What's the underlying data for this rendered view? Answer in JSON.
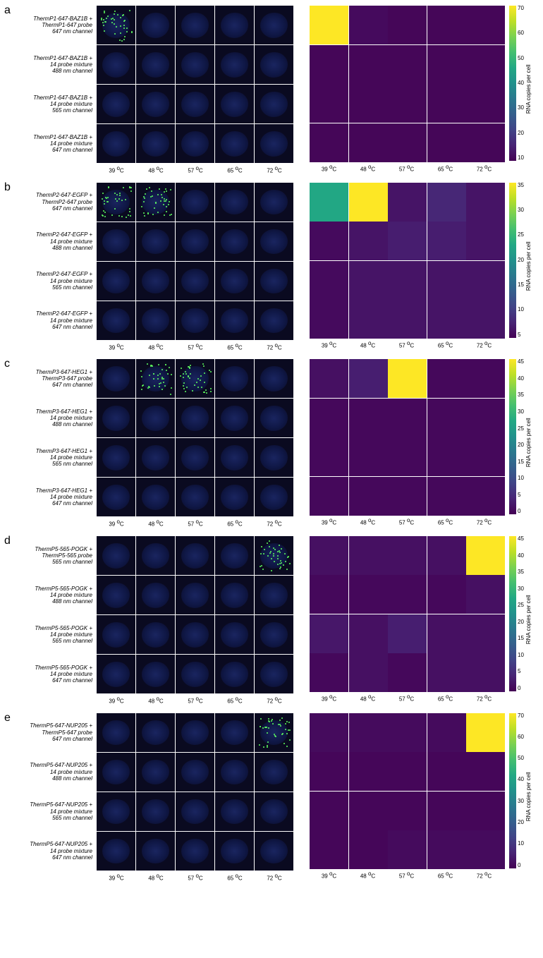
{
  "figure": {
    "temps": [
      "39 °C",
      "48 °C",
      "57 °C",
      "65 °C",
      "72 °C"
    ],
    "colorbar_label": "RNA copies per cell",
    "viridis_stops": [
      "#440154",
      "#482475",
      "#414487",
      "#355f8d",
      "#2a788e",
      "#21918c",
      "#22a884",
      "#44bf70",
      "#7ad151",
      "#bddf26",
      "#fde725"
    ],
    "dot_color": "#5fff60",
    "nucleus_color": "#1a2560",
    "cell_bg": "#0a0a20"
  },
  "panels": [
    {
      "letter": "a",
      "rows": [
        "ThermP1-647-BAZ1B +\nThermP1-647 probe\n647 nm channel",
        "ThermP1-647-BAZ1B +\n14 probe mixture\n488 nm channel",
        "ThermP1-647-BAZ1B +\n14 probe mixture\n565 nm channel",
        "ThermP1-647-BAZ1B +\n14 probe mixture\n647 nm channel"
      ],
      "active_cells": [
        [
          0,
          0
        ]
      ],
      "heatmap": {
        "max": 75,
        "ticks": [
          "70",
          "60",
          "50",
          "40",
          "30",
          "20",
          "10"
        ],
        "values": [
          [
            75,
            2,
            1,
            1,
            1
          ],
          [
            1,
            1,
            1,
            1,
            1
          ],
          [
            1,
            1,
            1,
            1,
            1
          ],
          [
            1,
            1,
            1,
            1,
            1
          ]
        ]
      }
    },
    {
      "letter": "b",
      "rows": [
        "ThermP2-647-EGFP +\nThermP2-647 probe\n647 nm channel",
        "ThermP2-647-EGFP +\n14 probe mixture\n488 nm channel",
        "ThermP2-647-EGFP +\n14 probe mixture\n565 nm channel",
        "ThermP2-647-EGFP +\n14 probe mixture\n647 nm channel"
      ],
      "active_cells": [
        [
          0,
          0
        ],
        [
          0,
          1
        ]
      ],
      "heatmap": {
        "max": 37,
        "ticks": [
          "35",
          "30",
          "25",
          "20",
          "15",
          "10",
          "5"
        ],
        "values": [
          [
            22,
            37,
            2,
            4,
            2
          ],
          [
            1,
            2,
            3,
            3,
            2
          ],
          [
            1,
            2,
            2,
            2,
            2
          ],
          [
            1,
            2,
            2,
            2,
            2
          ]
        ]
      }
    },
    {
      "letter": "c",
      "rows": [
        "ThermP3-647-HEG1 +\nThermP3-647 probe\n647 nm channel",
        "ThermP3-647-HEG1 +\n14 probe mixture\n488 nm channel",
        "ThermP3-647-HEG1 +\n14 probe mixture\n565 nm channel",
        "ThermP3-647-HEG1 +\n14 probe mixture\n647 nm channel"
      ],
      "active_cells": [
        [
          0,
          1
        ],
        [
          0,
          2
        ]
      ],
      "heatmap": {
        "max": 48,
        "ticks": [
          "45",
          "40",
          "35",
          "30",
          "25",
          "20",
          "15",
          "10",
          "5",
          "0"
        ],
        "values": [
          [
            2,
            4,
            48,
            1,
            1
          ],
          [
            1,
            1,
            1,
            1,
            1
          ],
          [
            1,
            1,
            1,
            1,
            1
          ],
          [
            1,
            1,
            1,
            1,
            1
          ]
        ]
      }
    },
    {
      "letter": "d",
      "rows": [
        "ThermP5-565-POGK +\nThermP5-565 probe\n565 nm channel",
        "ThermP5-565-POGK +\n14 probe mixture\n488 nm channel",
        "ThermP5-565-POGK +\n14 probe mixture\n565 nm channel",
        "ThermP5-565-POGK +\n14 probe mixture\n647 nm channel"
      ],
      "active_cells": [
        [
          0,
          4
        ]
      ],
      "heatmap": {
        "max": 48,
        "ticks": [
          "45",
          "40",
          "35",
          "30",
          "25",
          "20",
          "15",
          "10",
          "5",
          "0"
        ],
        "values": [
          [
            2,
            2,
            2,
            2,
            48
          ],
          [
            1,
            1,
            1,
            1,
            2
          ],
          [
            3,
            2,
            4,
            2,
            2
          ],
          [
            1,
            2,
            1,
            2,
            2
          ]
        ]
      }
    },
    {
      "letter": "e",
      "rows": [
        "ThermP5-647-NUP205 +\nThermP5-647 probe\n647 nm channel",
        "ThermP5-647-NUP205 +\n14 probe mixture\n488 nm channel",
        "ThermP5-647-NUP205 +\n14 probe mixture\n565 nm channel",
        "ThermP5-647-NUP205 +\n14 probe mixture\n647 nm channel"
      ],
      "active_cells": [
        [
          0,
          4
        ]
      ],
      "heatmap": {
        "max": 72,
        "ticks": [
          "70",
          "60",
          "50",
          "40",
          "30",
          "20",
          "10",
          "0"
        ],
        "values": [
          [
            2,
            2,
            2,
            2,
            72
          ],
          [
            1,
            1,
            1,
            1,
            1
          ],
          [
            1,
            1,
            1,
            1,
            1
          ],
          [
            1,
            1,
            2,
            2,
            2
          ]
        ]
      }
    }
  ]
}
